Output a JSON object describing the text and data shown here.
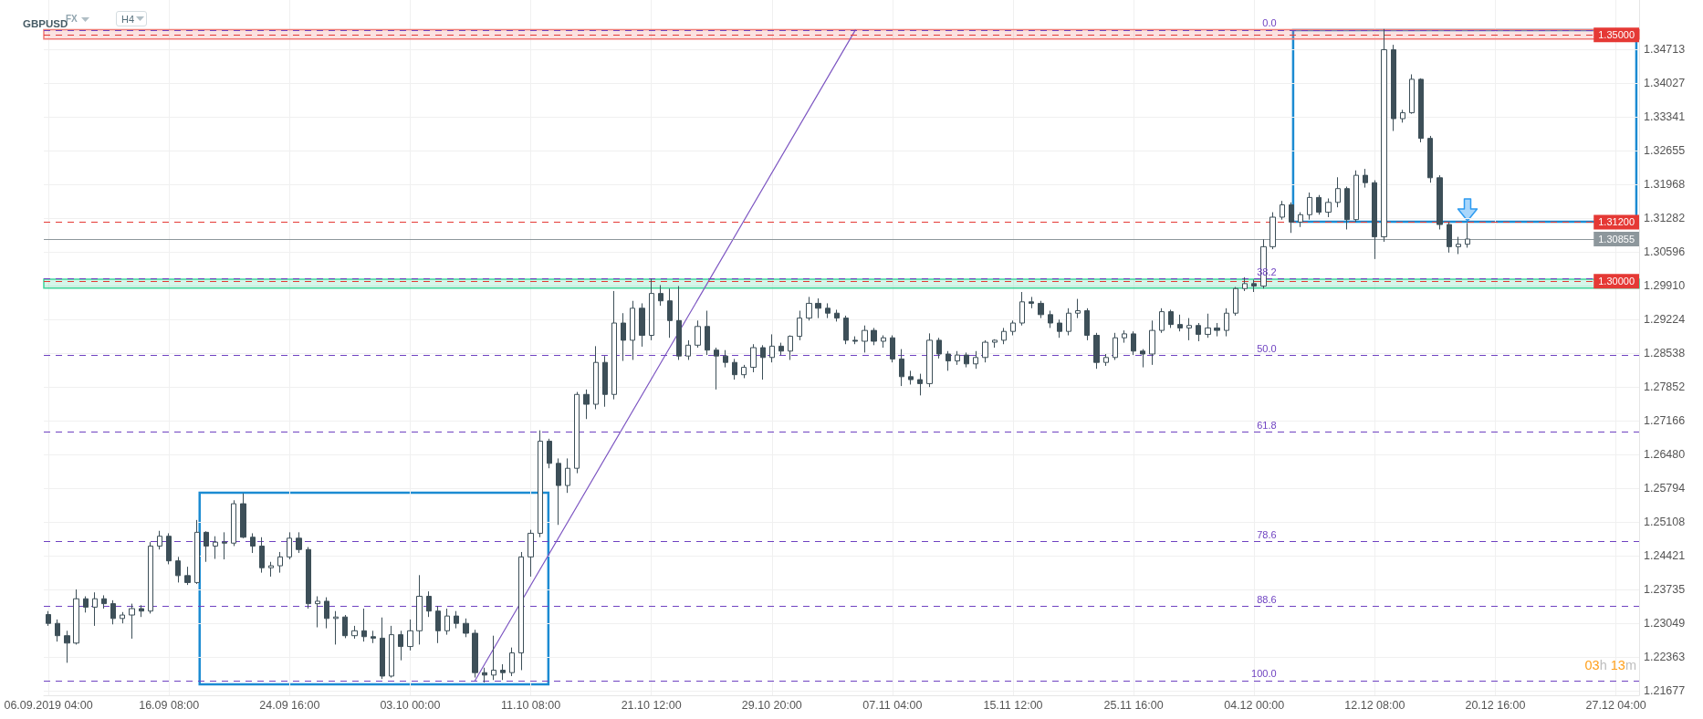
{
  "chart_data": {
    "type": "candlestick",
    "title": "GBPUSD",
    "categories": [
      "06.09.2019 04:00",
      null,
      null,
      null,
      null,
      null,
      null,
      null,
      null,
      null,
      null,
      null,
      null,
      "16.09 08:00",
      null,
      null,
      null,
      null,
      null,
      null,
      null,
      null,
      null,
      null,
      null,
      null,
      "24.09 16:00",
      null,
      null,
      null,
      null,
      null,
      null,
      null,
      null,
      null,
      null,
      null,
      null,
      "03.10 00:00",
      null,
      null,
      null,
      null,
      null,
      null,
      null,
      null,
      null,
      null,
      null,
      null,
      "11.10 08:00",
      null,
      null,
      null,
      null,
      null,
      null,
      null,
      null,
      null,
      null,
      null,
      null,
      "21.10 12:00",
      null,
      null,
      null,
      null,
      null,
      null,
      null,
      null,
      null,
      null,
      null,
      null,
      "29.10 20:00",
      null,
      null,
      null,
      null,
      null,
      null,
      null,
      null,
      null,
      null,
      null,
      null,
      "07.11 04:00",
      null,
      null,
      null,
      null,
      null,
      null,
      null,
      null,
      null,
      null,
      null,
      null,
      "15.11 12:00",
      null,
      null,
      null,
      null,
      null,
      null,
      null,
      null,
      null,
      null,
      null,
      null,
      "25.11 16:00",
      null,
      null,
      null,
      null,
      null,
      null,
      null,
      null,
      null,
      null,
      null,
      null,
      "04.12 00:00",
      null,
      null,
      null,
      null,
      null,
      null,
      null,
      null,
      null,
      null,
      null,
      null,
      "12.12 08:00",
      null,
      null,
      null,
      null,
      null,
      null,
      null,
      null,
      null,
      null,
      null,
      null,
      "20.12 16:00",
      null,
      null,
      null,
      null,
      null,
      null,
      null,
      null,
      null,
      null,
      null,
      null,
      "27.12 04:00",
      null,
      null
    ],
    "series": [
      {
        "type": "candlestick",
        "color": "#3d4f58",
        "ohlc": [
          [
            1.2323,
            1.233,
            1.23,
            1.2305
          ],
          [
            1.2305,
            1.2313,
            1.2268,
            1.228
          ],
          [
            1.228,
            1.229,
            1.2225,
            1.2265
          ],
          [
            1.2265,
            1.2374,
            1.2262,
            1.2355
          ],
          [
            1.2355,
            1.236,
            1.2327,
            1.2338
          ],
          [
            1.2338,
            1.2368,
            1.23,
            1.2355
          ],
          [
            1.2355,
            1.2362,
            1.2335,
            1.2345
          ],
          [
            1.2345,
            1.2352,
            1.2303,
            1.2315
          ],
          [
            1.2315,
            1.2328,
            1.2305,
            1.2322
          ],
          [
            1.2322,
            1.2345,
            1.2274,
            1.2335
          ],
          [
            1.2335,
            1.2342,
            1.2318,
            1.233
          ],
          [
            1.233,
            1.247,
            1.2325,
            1.2462
          ],
          [
            1.2462,
            1.2493,
            1.2455,
            1.2482
          ],
          [
            1.2482,
            1.2488,
            1.2425,
            1.2432
          ],
          [
            1.2432,
            1.244,
            1.2388,
            1.2402
          ],
          [
            1.2402,
            1.242,
            1.2383,
            1.2388
          ],
          [
            1.2388,
            1.2515,
            1.2385,
            1.249
          ],
          [
            1.249,
            1.2492,
            1.243,
            1.2462
          ],
          [
            1.2462,
            1.2482,
            1.2436,
            1.247
          ],
          [
            1.247,
            1.249,
            1.2435,
            1.2468
          ],
          [
            1.2468,
            1.2555,
            1.2462,
            1.2548
          ],
          [
            1.2548,
            1.2569,
            1.2478,
            1.248
          ],
          [
            1.248,
            1.2488,
            1.2448,
            1.2462
          ],
          [
            1.2462,
            1.248,
            1.2408,
            1.2418
          ],
          [
            1.2418,
            1.243,
            1.24,
            1.2422
          ],
          [
            1.2422,
            1.245,
            1.2408,
            1.244
          ],
          [
            1.244,
            1.249,
            1.2435,
            1.2478
          ],
          [
            1.2478,
            1.249,
            1.2448,
            1.2455
          ],
          [
            1.2455,
            1.246,
            1.2335,
            1.2345
          ],
          [
            1.2345,
            1.236,
            1.2297,
            1.235
          ],
          [
            1.235,
            1.2358,
            1.2295,
            1.2315
          ],
          [
            1.2315,
            1.233,
            1.2262,
            1.2318
          ],
          [
            1.2318,
            1.2322,
            1.2275,
            1.228
          ],
          [
            1.228,
            1.23,
            1.2274,
            1.229
          ],
          [
            1.229,
            1.2335,
            1.2268,
            1.2278
          ],
          [
            1.2278,
            1.229,
            1.2265,
            1.2275
          ],
          [
            1.2275,
            1.2317,
            1.2192,
            1.2198
          ],
          [
            1.2198,
            1.23,
            1.2195,
            1.2282
          ],
          [
            1.2282,
            1.229,
            1.223,
            1.2258
          ],
          [
            1.2258,
            1.2313,
            1.225,
            1.229
          ],
          [
            1.229,
            1.2403,
            1.2262,
            1.236
          ],
          [
            1.236,
            1.237,
            1.2318,
            1.233
          ],
          [
            1.233,
            1.234,
            1.2265,
            1.229
          ],
          [
            1.229,
            1.2335,
            1.2282,
            1.232
          ],
          [
            1.232,
            1.233,
            1.2295,
            1.2305
          ],
          [
            1.2305,
            1.2315,
            1.2277,
            1.2285
          ],
          [
            1.2285,
            1.2292,
            1.2195,
            1.2205
          ],
          [
            1.2205,
            1.2215,
            1.2185,
            1.22
          ],
          [
            1.22,
            1.228,
            1.219,
            1.221
          ],
          [
            1.221,
            1.2222,
            1.219,
            1.2205
          ],
          [
            1.2205,
            1.2256,
            1.2198,
            1.2245
          ],
          [
            1.2245,
            1.245,
            1.221,
            1.244
          ],
          [
            1.244,
            1.2495,
            1.24,
            1.2488
          ],
          [
            1.2488,
            1.2697,
            1.248,
            1.2675
          ],
          [
            1.2675,
            1.268,
            1.262,
            1.263
          ],
          [
            1.263,
            1.264,
            1.2505,
            1.2585
          ],
          [
            1.2585,
            1.264,
            1.257,
            1.262
          ],
          [
            1.262,
            1.2775,
            1.261,
            1.277
          ],
          [
            1.277,
            1.278,
            1.272,
            1.275
          ],
          [
            1.275,
            1.2868,
            1.274,
            1.2835
          ],
          [
            1.2835,
            1.2848,
            1.2745,
            1.277
          ],
          [
            1.277,
            1.298,
            1.276,
            1.2915
          ],
          [
            1.2915,
            1.2935,
            1.2838,
            1.288
          ],
          [
            1.288,
            1.296,
            1.284,
            1.2945
          ],
          [
            1.2945,
            1.2955,
            1.2867,
            1.289
          ],
          [
            1.289,
            1.3005,
            1.288,
            1.2975
          ],
          [
            1.2975,
            1.2992,
            1.295,
            1.296
          ],
          [
            1.296,
            1.2985,
            1.2885,
            1.292
          ],
          [
            1.292,
            1.299,
            1.284,
            1.2848
          ],
          [
            1.2848,
            1.288,
            1.284,
            1.287
          ],
          [
            1.287,
            1.292,
            1.2865,
            1.2908
          ],
          [
            1.2908,
            1.294,
            1.285,
            1.286
          ],
          [
            1.286,
            1.2865,
            1.278,
            1.2848
          ],
          [
            1.2848,
            1.286,
            1.2825,
            1.2835
          ],
          [
            1.2835,
            1.2842,
            1.28,
            1.281
          ],
          [
            1.281,
            1.283,
            1.2803,
            1.2825
          ],
          [
            1.2825,
            1.2872,
            1.2815,
            1.2865
          ],
          [
            1.2865,
            1.287,
            1.28,
            1.2845
          ],
          [
            1.2845,
            1.2892,
            1.2835,
            1.2868
          ],
          [
            1.2868,
            1.2875,
            1.285,
            1.2858
          ],
          [
            1.2858,
            1.289,
            1.284,
            1.2888
          ],
          [
            1.2888,
            1.294,
            1.288,
            1.2925
          ],
          [
            1.2925,
            1.2968,
            1.292,
            1.2955
          ],
          [
            1.2955,
            1.2965,
            1.2925,
            1.2945
          ],
          [
            1.2945,
            1.2955,
            1.2925,
            1.2935
          ],
          [
            1.2935,
            1.2942,
            1.2918,
            1.2925
          ],
          [
            1.2925,
            1.293,
            1.2872,
            1.288
          ],
          [
            1.288,
            1.2888,
            1.2872,
            1.2878
          ],
          [
            1.2878,
            1.291,
            1.2855,
            1.29
          ],
          [
            1.29,
            1.2905,
            1.287,
            1.2878
          ],
          [
            1.2878,
            1.289,
            1.2865,
            1.2885
          ],
          [
            1.2885,
            1.289,
            1.2835,
            1.2842
          ],
          [
            1.2842,
            1.2862,
            1.2787,
            1.2806
          ],
          [
            1.2806,
            1.2818,
            1.279,
            1.28
          ],
          [
            1.28,
            1.2812,
            1.2768,
            1.2792
          ],
          [
            1.2792,
            1.2894,
            1.2785,
            1.288
          ],
          [
            1.288,
            1.2885,
            1.2843,
            1.2852
          ],
          [
            1.2852,
            1.2858,
            1.2818,
            1.2838
          ],
          [
            1.2838,
            1.2858,
            1.283,
            1.285
          ],
          [
            1.285,
            1.2855,
            1.2825,
            1.2832
          ],
          [
            1.2832,
            1.2858,
            1.2822,
            1.2845
          ],
          [
            1.2845,
            1.288,
            1.2835,
            1.2876
          ],
          [
            1.2876,
            1.2882,
            1.2865,
            1.288
          ],
          [
            1.288,
            1.2905,
            1.2872,
            1.2898
          ],
          [
            1.2898,
            1.292,
            1.289,
            1.2915
          ],
          [
            1.2915,
            1.2978,
            1.291,
            1.2958
          ],
          [
            1.2958,
            1.2968,
            1.2945,
            1.2955
          ],
          [
            1.2955,
            1.296,
            1.2925,
            1.2932
          ],
          [
            1.2932,
            1.294,
            1.2905,
            1.2915
          ],
          [
            1.2915,
            1.2922,
            1.2885,
            1.2898
          ],
          [
            1.2898,
            1.2945,
            1.289,
            1.2935
          ],
          [
            1.2935,
            1.2964,
            1.2925,
            1.294
          ],
          [
            1.294,
            1.2945,
            1.288,
            1.289
          ],
          [
            1.289,
            1.2895,
            1.2822,
            1.2835
          ],
          [
            1.2835,
            1.2852,
            1.2828,
            1.2845
          ],
          [
            1.2845,
            1.2895,
            1.284,
            1.2885
          ],
          [
            1.2885,
            1.29,
            1.2875,
            1.2893
          ],
          [
            1.2893,
            1.2898,
            1.285,
            1.2858
          ],
          [
            1.2858,
            1.2862,
            1.2825,
            1.2852
          ],
          [
            1.2852,
            1.292,
            1.283,
            1.29
          ],
          [
            1.29,
            1.2945,
            1.2895,
            1.2938
          ],
          [
            1.2938,
            1.2942,
            1.2905,
            1.2912
          ],
          [
            1.2912,
            1.2932,
            1.2898,
            1.2905
          ],
          [
            1.2905,
            1.2925,
            1.288,
            1.291
          ],
          [
            1.291,
            1.2915,
            1.2878,
            1.2892
          ],
          [
            1.2892,
            1.2934,
            1.2885,
            1.2905
          ],
          [
            1.2905,
            1.2915,
            1.2888,
            1.29
          ],
          [
            1.29,
            1.2945,
            1.2888,
            1.2935
          ],
          [
            1.2935,
            1.2988,
            1.293,
            1.2985
          ],
          [
            1.2985,
            1.3008,
            1.298,
            1.2995
          ],
          [
            1.2995,
            1.3003,
            1.2978,
            1.299
          ],
          [
            1.299,
            1.3085,
            1.2985,
            1.307
          ],
          [
            1.307,
            1.314,
            1.3065,
            1.313
          ],
          [
            1.313,
            1.3163,
            1.3125,
            1.3155
          ],
          [
            1.3155,
            1.316,
            1.3098,
            1.312
          ],
          [
            1.312,
            1.314,
            1.311,
            1.3135
          ],
          [
            1.3135,
            1.318,
            1.3125,
            1.317
          ],
          [
            1.317,
            1.3175,
            1.3135,
            1.314
          ],
          [
            1.314,
            1.3168,
            1.313,
            1.316
          ],
          [
            1.316,
            1.3211,
            1.315,
            1.3188
          ],
          [
            1.3188,
            1.3192,
            1.3105,
            1.3125
          ],
          [
            1.3125,
            1.3225,
            1.312,
            1.3215
          ],
          [
            1.3215,
            1.3228,
            1.319,
            1.32
          ],
          [
            1.32,
            1.3205,
            1.3045,
            1.309
          ],
          [
            1.309,
            1.3512,
            1.308,
            1.347
          ],
          [
            1.347,
            1.348,
            1.3305,
            1.333
          ],
          [
            1.333,
            1.3348,
            1.3322,
            1.3342
          ],
          [
            1.3342,
            1.342,
            1.334,
            1.341
          ],
          [
            1.341,
            1.3412,
            1.3282,
            1.329
          ],
          [
            1.329,
            1.3295,
            1.32,
            1.321
          ],
          [
            1.321,
            1.3215,
            1.3105,
            1.3115
          ],
          [
            1.3115,
            1.312,
            1.3058,
            1.307
          ],
          [
            1.307,
            1.309,
            1.3055,
            1.3075
          ],
          [
            1.3075,
            1.3118,
            1.3068,
            1.30855
          ],
          null,
          null,
          null,
          null,
          null,
          null,
          null,
          null,
          null,
          null,
          null,
          null,
          null,
          null,
          null,
          null,
          null,
          null
        ]
      },
      {
        "type": "line",
        "color": "#7e57c2",
        "values": [
          null,
          null,
          null,
          null,
          null,
          null,
          null,
          null,
          null,
          null,
          null,
          null,
          null,
          null,
          null,
          null,
          null,
          null,
          null,
          null,
          null,
          null,
          null,
          null,
          null,
          null,
          null,
          null,
          null,
          null,
          null,
          null,
          null,
          null,
          null,
          null,
          null,
          null,
          null,
          null,
          null,
          null,
          null,
          null,
          null,
          null,
          1.2189,
          null,
          null,
          null,
          null,
          null,
          null,
          null,
          null,
          null,
          null,
          null,
          null,
          null,
          null,
          null,
          null,
          null,
          null,
          null,
          null,
          null,
          null,
          null,
          null,
          null,
          null,
          null,
          null,
          null,
          null,
          null,
          null,
          null,
          null,
          null,
          null,
          null,
          null,
          null,
          null,
          1.351,
          null,
          null,
          null,
          null,
          null,
          null,
          null,
          null,
          null,
          null,
          null,
          null,
          null,
          null,
          null,
          null,
          null,
          null,
          null,
          null,
          null,
          null,
          null,
          null,
          null,
          null,
          null,
          null,
          null,
          null,
          null,
          null,
          null,
          null,
          null,
          null,
          null,
          null,
          null,
          null,
          null,
          null,
          null,
          null,
          null,
          null,
          null,
          null,
          null,
          null,
          null,
          null,
          null,
          null,
          null,
          null,
          null,
          null,
          null,
          null,
          null,
          null,
          null,
          null,
          null,
          null,
          null,
          null,
          null,
          null,
          null,
          null,
          null,
          null,
          null,
          null,
          null,
          null,
          null,
          null,
          null,
          null,
          null,
          null
        ]
      }
    ],
    "ylim": [
      1.2159,
      1.3571
    ],
    "yticks": [
      1.21677,
      1.22363,
      1.23049,
      1.23735,
      1.24421,
      1.25108,
      1.25794,
      {
        "value": 1.2648,
        "label": "1.26480"
      },
      1.27166,
      1.27852,
      1.28538,
      1.29224,
      {
        "value": 1.2991,
        "label": "1.29910"
      },
      1.30596,
      1.31282,
      1.31968,
      1.32655,
      1.33341,
      1.34027,
      1.34713
    ],
    "grid": true,
    "ref_lines": [
      {
        "axis": "y",
        "value": 1.351,
        "color": "#6f42c1",
        "line_style": "dashed"
      },
      {
        "axis": "y",
        "value": 1.3005,
        "color": "#6f42c1",
        "line_style": "dashed"
      },
      {
        "axis": "y",
        "value": 1.285,
        "color": "#6f42c1",
        "line_style": "dashed"
      },
      {
        "axis": "y",
        "value": 1.2694,
        "color": "#6f42c1",
        "line_style": "dashed"
      },
      {
        "axis": "y",
        "value": 1.2472,
        "color": "#6f42c1",
        "line_style": "dashed"
      },
      {
        "axis": "y",
        "value": 1.234,
        "color": "#6f42c1",
        "line_style": "dashed"
      },
      {
        "axis": "y",
        "value": 1.2189,
        "color": "#6f42c1",
        "line_style": "dashed"
      },
      {
        "axis": "y",
        "value": 1.35,
        "label": "1.35000",
        "color": "#e53935",
        "line_style": "dashed"
      },
      {
        "axis": "y",
        "value": 1.312,
        "label": "1.31200",
        "color": "#e53935",
        "line_style": "dashed"
      },
      {
        "axis": "y",
        "value": 1.3,
        "label": "1.30000",
        "color": "#e53935",
        "line_style": "dashed"
      },
      {
        "axis": "y",
        "value": 1.30855,
        "label": "1.30855",
        "color": "#8d979c",
        "line_style": "solid"
      }
    ],
    "bands": [
      {
        "axis": "y",
        "from": 1.2986,
        "to": 1.3004,
        "color": "#3fd49a"
      },
      {
        "axis": "y",
        "from": 1.3492,
        "to": 1.3511,
        "color": "#ef7b76"
      }
    ],
    "annotations": [
      "FX",
      "H4",
      "03h 13m",
      {
        "text": "0.0",
        "y": 1.351
      },
      {
        "text": "38.2",
        "y": 1.3005
      },
      {
        "text": "50.0",
        "y": 1.285
      },
      {
        "text": "61.8",
        "y": 1.2694
      },
      {
        "text": "78.6",
        "y": 1.2472
      },
      {
        "text": "88.6",
        "y": 1.234
      },
      {
        "text": "100.0",
        "y": 1.2189
      }
    ]
  }
}
